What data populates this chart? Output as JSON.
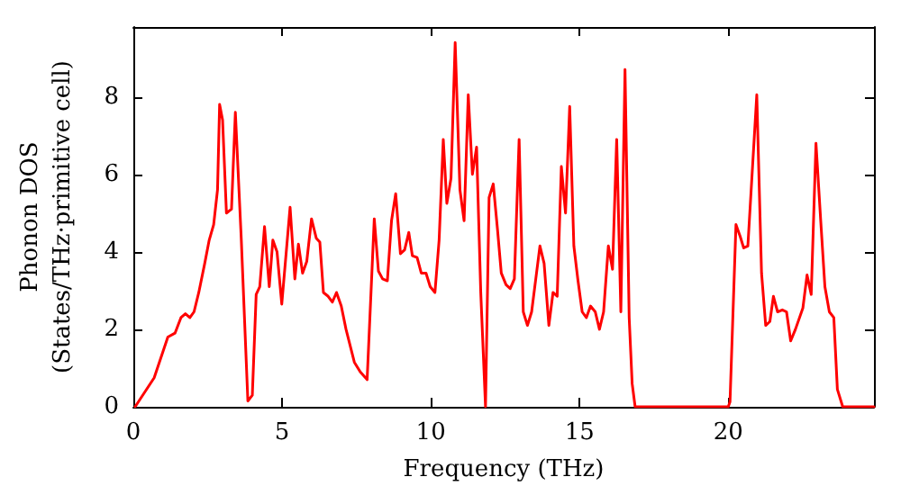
{
  "chart_data": {
    "type": "line",
    "xlabel": "Frequency (THz)",
    "ylabel": "Phonon DOS\n(States/THz·primitive cell)",
    "xlim": [
      0,
      24.9
    ],
    "ylim": [
      0,
      9.8
    ],
    "xticks": [
      0,
      5,
      10,
      15,
      20
    ],
    "yticks": [
      0,
      2,
      4,
      6,
      8
    ],
    "grid": false,
    "marker": "none",
    "line_style": "solid",
    "series": [
      {
        "color": "#ff0000",
        "x": [
          0.06,
          0.7,
          1.16,
          1.4,
          1.6,
          1.75,
          1.9,
          2.04,
          2.2,
          2.4,
          2.55,
          2.7,
          2.83,
          2.9,
          3.0,
          3.13,
          3.3,
          3.43,
          3.63,
          3.85,
          4.0,
          4.13,
          4.25,
          4.41,
          4.57,
          4.69,
          4.83,
          4.99,
          5.27,
          5.43,
          5.55,
          5.69,
          5.83,
          5.99,
          6.15,
          6.27,
          6.39,
          6.55,
          6.69,
          6.83,
          6.99,
          7.15,
          7.43,
          7.63,
          7.86,
          8.1,
          8.24,
          8.38,
          8.54,
          8.68,
          8.82,
          8.98,
          9.12,
          9.26,
          9.38,
          9.54,
          9.68,
          9.84,
          9.98,
          10.14,
          10.28,
          10.42,
          10.54,
          10.68,
          10.82,
          10.98,
          11.12,
          11.26,
          11.4,
          11.54,
          11.68,
          11.84,
          11.96,
          12.1,
          12.24,
          12.37,
          12.53,
          12.67,
          12.81,
          12.97,
          13.11,
          13.25,
          13.39,
          13.53,
          13.67,
          13.81,
          13.97,
          14.11,
          14.25,
          14.39,
          14.53,
          14.67,
          14.81,
          14.95,
          15.09,
          15.23,
          15.37,
          15.53,
          15.67,
          15.81,
          15.97,
          16.11,
          16.25,
          16.39,
          16.53,
          16.67,
          16.77,
          16.87,
          20.0,
          20.06,
          20.26,
          20.4,
          20.52,
          20.66,
          20.96,
          21.12,
          21.26,
          21.4,
          21.52,
          21.66,
          21.82,
          21.96,
          22.1,
          22.26,
          22.51,
          22.65,
          22.79,
          22.95,
          23.11,
          23.25,
          23.4,
          23.55,
          23.67,
          23.85,
          24.9
        ],
        "values": [
          0,
          0.75,
          1.8,
          1.9,
          2.3,
          2.4,
          2.3,
          2.45,
          2.95,
          3.7,
          4.3,
          4.7,
          5.6,
          7.8,
          7.4,
          5.0,
          5.1,
          7.6,
          4.3,
          0.15,
          0.3,
          2.9,
          3.1,
          4.65,
          3.1,
          4.3,
          4.0,
          2.65,
          5.15,
          3.3,
          4.2,
          3.45,
          3.75,
          4.85,
          4.35,
          4.25,
          2.95,
          2.85,
          2.7,
          2.95,
          2.6,
          2.0,
          1.15,
          0.9,
          0.7,
          4.85,
          3.5,
          3.3,
          3.25,
          4.8,
          5.5,
          3.95,
          4.05,
          4.5,
          3.9,
          3.85,
          3.45,
          3.45,
          3.1,
          2.95,
          4.3,
          6.9,
          5.25,
          5.9,
          9.4,
          5.6,
          4.8,
          8.05,
          6.0,
          6.7,
          2.95,
          0,
          5.4,
          5.75,
          4.6,
          3.45,
          3.15,
          3.05,
          3.3,
          6.9,
          2.45,
          2.1,
          2.45,
          3.3,
          4.15,
          3.7,
          2.1,
          2.95,
          2.85,
          6.2,
          5.0,
          7.75,
          4.15,
          3.25,
          2.45,
          2.3,
          2.6,
          2.45,
          2.0,
          2.45,
          4.15,
          3.55,
          6.9,
          2.45,
          8.7,
          2.3,
          0.6,
          0,
          0,
          0.13,
          4.7,
          4.4,
          4.1,
          4.15,
          8.05,
          3.45,
          2.1,
          2.2,
          2.85,
          2.45,
          2.5,
          2.45,
          1.7,
          2.0,
          2.55,
          3.4,
          2.9,
          6.8,
          4.8,
          3.1,
          2.45,
          2.3,
          0.45,
          0,
          0
        ]
      }
    ]
  }
}
